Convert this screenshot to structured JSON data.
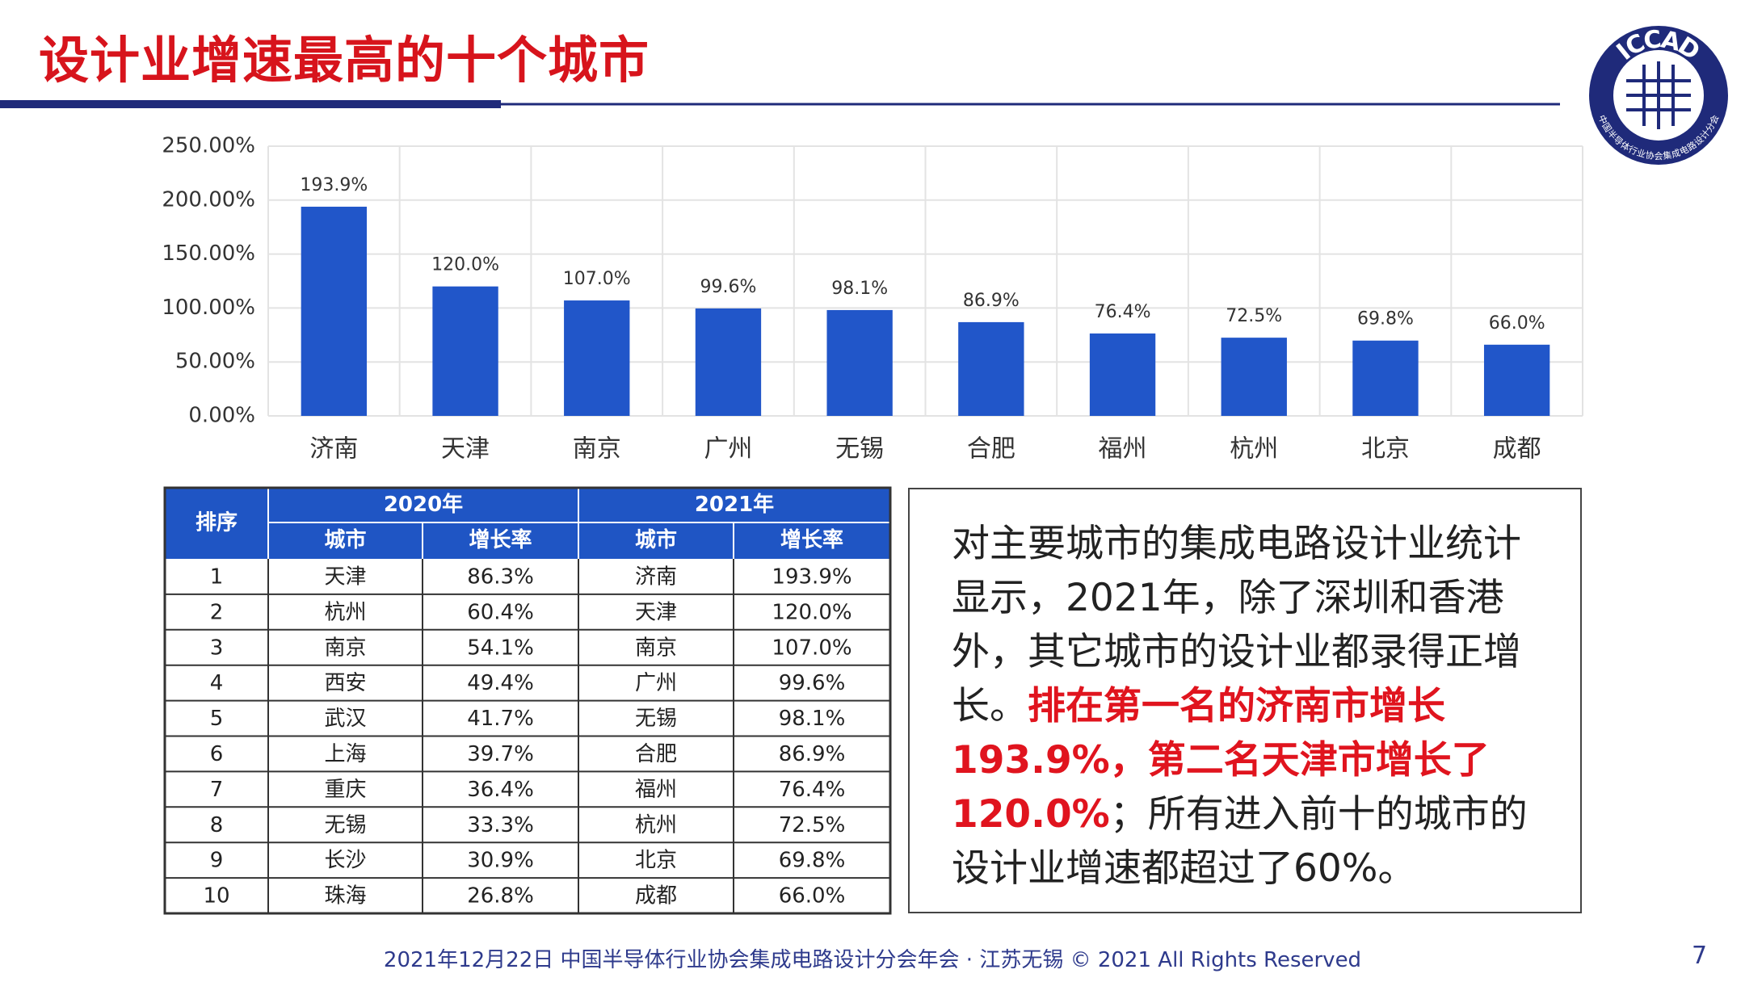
{
  "header": {
    "title": "设计业增速最高的十个城市"
  },
  "logo": {
    "text": "ICCAD",
    "subtext": "中国半导体行业协会集成电路设计分会"
  },
  "chart_data": {
    "type": "bar",
    "categories": [
      "济南",
      "天津",
      "南京",
      "广州",
      "无锡",
      "合肥",
      "福州",
      "杭州",
      "北京",
      "成都"
    ],
    "values": [
      193.9,
      120.0,
      107.0,
      99.6,
      98.1,
      86.9,
      76.4,
      72.5,
      69.8,
      66.0
    ],
    "value_labels": [
      "193.9%",
      "120.0%",
      "107.0%",
      "99.6%",
      "98.1%",
      "86.9%",
      "76.4%",
      "72.5%",
      "69.8%",
      "66.0%"
    ],
    "color": "#2156c9",
    "ylim": [
      0,
      250
    ],
    "yticks": [
      {
        "value": 0,
        "label": "0.00%"
      },
      {
        "value": 50,
        "label": "50.00%"
      },
      {
        "value": 100,
        "label": "100.00%"
      },
      {
        "value": 150,
        "label": "150.00%"
      },
      {
        "value": 200,
        "label": "200.00%"
      },
      {
        "value": 250,
        "label": "250.00%"
      }
    ],
    "grid": true
  },
  "table": {
    "rank_header": "排序",
    "groups": [
      "2020年",
      "2021年"
    ],
    "columns": [
      "城市",
      "增长率",
      "城市",
      "增长率"
    ],
    "rows": [
      [
        "1",
        "天津",
        "86.3%",
        "济南",
        "193.9%"
      ],
      [
        "2",
        "杭州",
        "60.4%",
        "天津",
        "120.0%"
      ],
      [
        "3",
        "南京",
        "54.1%",
        "南京",
        "107.0%"
      ],
      [
        "4",
        "西安",
        "49.4%",
        "广州",
        "99.6%"
      ],
      [
        "5",
        "武汉",
        "41.7%",
        "无锡",
        "98.1%"
      ],
      [
        "6",
        "上海",
        "39.7%",
        "合肥",
        "86.9%"
      ],
      [
        "7",
        "重庆",
        "36.4%",
        "福州",
        "76.4%"
      ],
      [
        "8",
        "无锡",
        "33.3%",
        "杭州",
        "72.5%"
      ],
      [
        "9",
        "长沙",
        "30.9%",
        "北京",
        "69.8%"
      ],
      [
        "10",
        "珠海",
        "26.8%",
        "成都",
        "66.0%"
      ]
    ]
  },
  "note": {
    "segments": [
      "对主要城市的集成电路设计业统计显示，2021年，除了深圳和香港外，其它城市的设计业都录得正增长。",
      "排在第一名的济南市增长193.9%，第二名天津市增长了120.0%",
      "；所有进入前十的城市的设计业增速都超过了60%。"
    ]
  },
  "footer": {
    "text": "2021年12月22日 中国半导体行业协会集成电路设计分会年会 · 江苏无锡 © 2021 All Rights Reserved",
    "page": "7"
  }
}
